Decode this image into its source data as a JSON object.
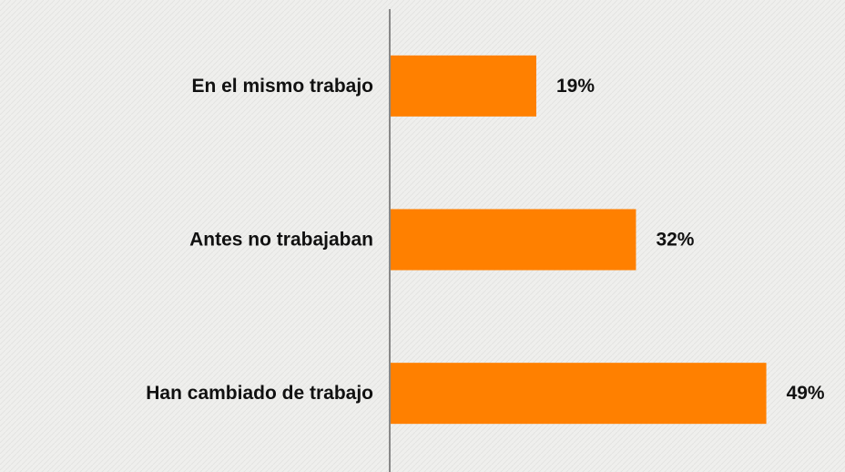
{
  "chart_data": {
    "type": "bar",
    "orientation": "horizontal",
    "categories": [
      "En el mismo trabajo",
      "Antes no trabajaban",
      "Han cambiado de trabajo"
    ],
    "values": [
      19,
      32,
      49
    ],
    "value_labels": [
      "19%",
      "32%",
      "49%"
    ],
    "color": "#ff8000"
  }
}
